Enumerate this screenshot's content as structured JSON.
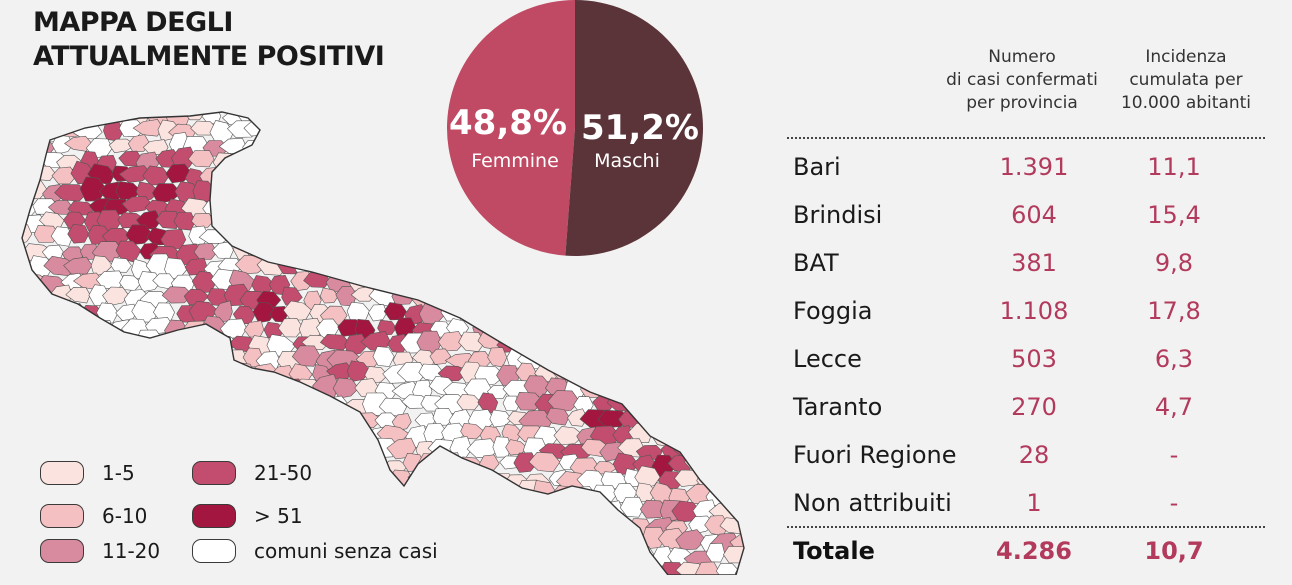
{
  "title_lines": [
    "MAPPA DEGLI",
    "ATTUALMENTE POSITIVI"
  ],
  "colors": {
    "none": "#ffffff",
    "c1_5": "#fbe3df",
    "c6_10": "#f5c0c2",
    "c11_20": "#d88a9e",
    "c21_50": "#c34d6e",
    "c51": "#a3163f",
    "pie_female": "#c04a63",
    "pie_male": "#5b343a",
    "value_text": "#b23a5c"
  },
  "legend": [
    {
      "label": "1-5",
      "color": "#fbe3df"
    },
    {
      "label": "6-10",
      "color": "#f5c0c2"
    },
    {
      "label": "11-20",
      "color": "#d88a9e"
    },
    {
      "label": "21-50",
      "color": "#c34d6e"
    },
    {
      "label": "> 51",
      "color": "#a3163f"
    },
    {
      "label": "comuni senza casi",
      "color": "#ffffff"
    }
  ],
  "chart_data": [
    {
      "type": "pie",
      "slices": [
        {
          "label": "Femmine",
          "value": 48.8,
          "display": "48,8%",
          "color": "#c04a63"
        },
        {
          "label": "Maschi",
          "value": 51.2,
          "display": "51,2%",
          "color": "#5b343a"
        }
      ]
    },
    {
      "type": "table",
      "columns": [
        "",
        "Numero di casi confermati per provincia",
        "Incidenza cumulata per 10.000 abitanti"
      ],
      "rows": [
        {
          "name": "Bari",
          "cases": "1.391",
          "incidence": "11,1"
        },
        {
          "name": "Brindisi",
          "cases": "604",
          "incidence": "15,4"
        },
        {
          "name": "BAT",
          "cases": "381",
          "incidence": "9,8"
        },
        {
          "name": "Foggia",
          "cases": "1.108",
          "incidence": "17,8"
        },
        {
          "name": "Lecce",
          "cases": "503",
          "incidence": "6,3"
        },
        {
          "name": "Taranto",
          "cases": "270",
          "incidence": "4,7"
        },
        {
          "name": "Fuori Regione",
          "cases": "28",
          "incidence": "-"
        },
        {
          "name": "Non attribuiti",
          "cases": "1",
          "incidence": "-"
        }
      ],
      "total": {
        "name": "Totale",
        "cases": "4.286",
        "incidence": "10,7"
      }
    }
  ],
  "table_header": {
    "col1": [
      "Numero",
      "di casi confermati",
      "per provincia"
    ],
    "col2": [
      "Incidenza",
      "cumulata per",
      "10.000 abitanti"
    ]
  }
}
